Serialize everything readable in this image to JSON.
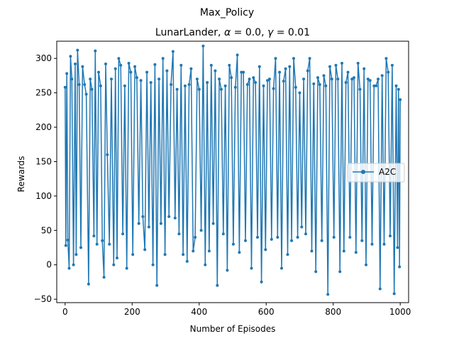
{
  "chart_data": {
    "type": "line",
    "suptitle": "Max_Policy",
    "title_prefix": "LunarLander, ",
    "title_alpha": "α",
    "title_mid": " = 0.0, ",
    "title_gamma": "γ",
    "title_suffix": " = 0.01",
    "xlabel": "Number of Episodes",
    "ylabel": "Rewards",
    "xlim": [
      -25,
      1025
    ],
    "ylim": [
      -55,
      325
    ],
    "xticks": [
      0,
      200,
      400,
      600,
      800,
      1000
    ],
    "xtick_labels": [
      "0",
      "200",
      "400",
      "600",
      "800",
      "1000"
    ],
    "yticks": [
      -50,
      0,
      50,
      100,
      150,
      200,
      250,
      300
    ],
    "ytick_labels": [
      "−50",
      "0",
      "50",
      "100",
      "150",
      "200",
      "250",
      "300"
    ],
    "grid": false,
    "legend_position": "center-right",
    "series": [
      {
        "name": "A2C",
        "color": "#1f77b4",
        "marker": "circle",
        "notes_episodes": "1000 episodes, values mostly oscillating between ~0 and ~300",
        "x": [
          0,
          2,
          5,
          8,
          12,
          16,
          20,
          25,
          30,
          33,
          37,
          42,
          47,
          52,
          58,
          63,
          70,
          75,
          80,
          86,
          90,
          95,
          100,
          106,
          111,
          116,
          121,
          126,
          132,
          138,
          145,
          150,
          155,
          160,
          166,
          172,
          178,
          184,
          190,
          196,
          202,
          208,
          214,
          220,
          226,
          232,
          238,
          244,
          250,
          256,
          262,
          268,
          274,
          280,
          286,
          292,
          298,
          304,
          310,
          316,
          322,
          328,
          334,
          340,
          346,
          352,
          358,
          364,
          370,
          376,
          382,
          388,
          394,
          400,
          406,
          412,
          418,
          424,
          430,
          436,
          442,
          448,
          454,
          460,
          466,
          472,
          478,
          484,
          490,
          496,
          502,
          508,
          514,
          520,
          526,
          532,
          538,
          544,
          550,
          556,
          562,
          568,
          574,
          580,
          586,
          592,
          598,
          604,
          610,
          616,
          622,
          628,
          634,
          640,
          646,
          652,
          658,
          664,
          670,
          676,
          682,
          688,
          694,
          700,
          706,
          712,
          718,
          724,
          730,
          736,
          742,
          748,
          754,
          760,
          766,
          772,
          778,
          784,
          790,
          796,
          802,
          808,
          814,
          820,
          826,
          832,
          838,
          844,
          850,
          856,
          862,
          868,
          874,
          880,
          886,
          892,
          898,
          904,
          910,
          916,
          922,
          928,
          934,
          940,
          946,
          952,
          958,
          964,
          970,
          976,
          982,
          988,
          992,
          995,
          998,
          1000
        ],
        "y": [
          258,
          28,
          278,
          36,
          -5,
          303,
          270,
          0,
          292,
          15,
          312,
          262,
          25,
          288,
          262,
          248,
          -28,
          270,
          255,
          42,
          311,
          30,
          280,
          260,
          35,
          -18,
          292,
          160,
          30,
          270,
          0,
          285,
          10,
          300,
          290,
          45,
          260,
          -5,
          293,
          280,
          15,
          288,
          272,
          60,
          268,
          70,
          22,
          280,
          55,
          265,
          0,
          291,
          -30,
          270,
          60,
          300,
          15,
          282,
          70,
          262,
          310,
          68,
          255,
          45,
          290,
          15,
          260,
          5,
          262,
          285,
          20,
          40,
          270,
          255,
          50,
          318,
          0,
          265,
          20,
          290,
          60,
          282,
          -30,
          270,
          255,
          45,
          260,
          -8,
          290,
          272,
          30,
          258,
          305,
          18,
          280,
          280,
          35,
          262,
          270,
          -5,
          272,
          265,
          40,
          288,
          -25,
          260,
          22,
          268,
          270,
          37,
          256,
          300,
          40,
          280,
          -5,
          267,
          285,
          15,
          288,
          35,
          300,
          258,
          40,
          250,
          55,
          270,
          45,
          282,
          300,
          20,
          263,
          -10,
          272,
          262,
          35,
          275,
          260,
          -43,
          288,
          270,
          40,
          290,
          270,
          -10,
          293,
          20,
          265,
          280,
          40,
          270,
          272,
          18,
          293,
          255,
          35,
          285,
          0,
          270,
          268,
          30,
          260,
          260,
          270,
          -35,
          275,
          30,
          300,
          280,
          42,
          290,
          -42,
          260,
          25,
          255,
          -3,
          240
        ]
      }
    ]
  }
}
